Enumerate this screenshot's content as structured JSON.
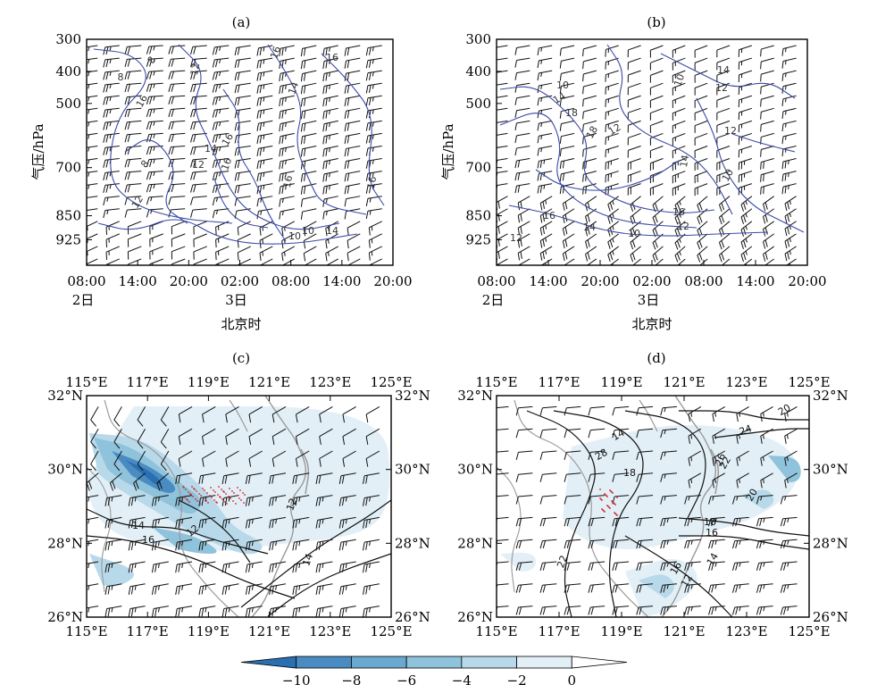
{
  "chart_data": [
    {
      "panel": "(a)",
      "type": "contour",
      "y_ticks": [
        "300",
        "400",
        "500",
        "700",
        "850",
        "925"
      ],
      "y_values": [
        300,
        400,
        500,
        700,
        850,
        925
      ],
      "ylim": [
        1000,
        300
      ],
      "ylabel": "气压/hPa",
      "x_ticks": [
        "08:00",
        "14:00",
        "20:00",
        "02:00",
        "08:00",
        "14:00",
        "20:00"
      ],
      "x_date_labels": [
        {
          "text": "2日",
          "index": 0
        },
        {
          "text": "3日",
          "index": 3
        }
      ],
      "xlabel": "北京时",
      "contour_labels": [
        "8",
        "12",
        "16",
        "16",
        "16",
        "14",
        "8",
        "8",
        "12",
        "14",
        "16",
        "16",
        "12",
        "10",
        "10",
        "16",
        "14",
        "16"
      ],
      "contour_color": "#3b4aa6"
    },
    {
      "panel": "(b)",
      "type": "contour",
      "y_ticks": [
        "300",
        "400",
        "500",
        "700",
        "850",
        "925"
      ],
      "y_values": [
        300,
        400,
        500,
        700,
        850,
        925
      ],
      "ylim": [
        1000,
        300
      ],
      "ylabel": "气压/hPa",
      "x_ticks": [
        "08:00",
        "14:00",
        "20:00",
        "02:00",
        "08:00",
        "14:00",
        "20:00"
      ],
      "x_date_labels": [
        {
          "text": "2日",
          "index": 0
        },
        {
          "text": "3日",
          "index": 3
        }
      ],
      "xlabel": "北京时",
      "contour_labels": [
        "14",
        "12",
        "10",
        "10",
        "14",
        "18",
        "18",
        "12",
        "12",
        "14",
        "10",
        "16",
        "16",
        "12",
        "14",
        "10",
        "12"
      ],
      "contour_color": "#3b4aa6"
    },
    {
      "panel": "(c)",
      "type": "map",
      "x_ticks": [
        "115°E",
        "117°E",
        "119°E",
        "121°E",
        "123°E",
        "125°E"
      ],
      "x_values": [
        115,
        117,
        119,
        121,
        123,
        125
      ],
      "y_ticks": [
        "32°N",
        "30°N",
        "28°N",
        "26°N"
      ],
      "y_values": [
        32,
        30,
        28,
        26
      ],
      "contour_labels": [
        "14",
        "16",
        "12",
        "12",
        "14"
      ],
      "contour_color": "#1a1a1a"
    },
    {
      "panel": "(d)",
      "type": "map",
      "x_ticks": [
        "115°E",
        "117°E",
        "119°E",
        "121°E",
        "123°E",
        "125°E"
      ],
      "x_values": [
        115,
        117,
        119,
        121,
        123,
        125
      ],
      "y_ticks": [
        "32°N",
        "30°N",
        "28°N",
        "26°N"
      ],
      "y_values": [
        32,
        30,
        28,
        26
      ],
      "contour_labels": [
        "28",
        "14",
        "18",
        "26",
        "24",
        "20",
        "22",
        "18",
        "16",
        "16",
        "12",
        "14",
        "20",
        "22"
      ],
      "contour_color": "#1a1a1a"
    }
  ],
  "colorbar": {
    "ticks": [
      "−10",
      "−8",
      "−6",
      "−4",
      "−2",
      "0"
    ],
    "values": [
      -10,
      -8,
      -6,
      -4,
      -2,
      0
    ],
    "colors": [
      "#2a6fb0",
      "#4a8cc2",
      "#6aa8d0",
      "#8fc2db",
      "#b8d9ea",
      "#e2eff7",
      "#ffffff"
    ]
  }
}
